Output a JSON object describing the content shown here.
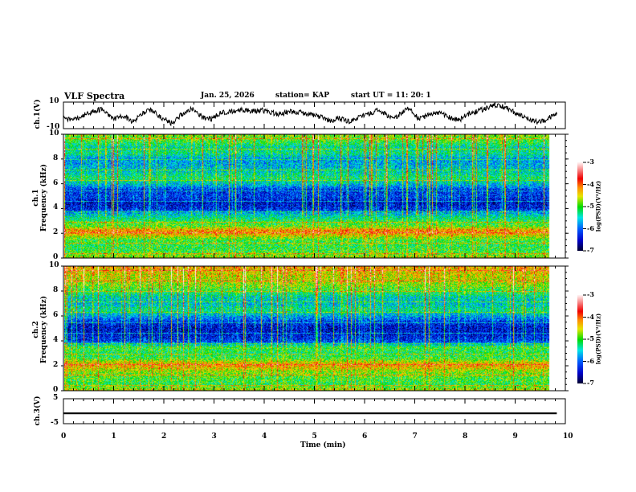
{
  "header": {
    "title": "VLF Spectra",
    "date": "Jan. 25, 2026",
    "station": "station= KAP",
    "start": "start  UT =   11: 20: 1"
  },
  "chart_data": [
    {
      "type": "line",
      "name": "ch1-waveform",
      "ylabel": "ch.1(V)",
      "ylim": [
        -10,
        10
      ],
      "yticks": [
        "10",
        "-10"
      ],
      "x_range_min": [
        0,
        9.83
      ],
      "values": [
        -2,
        -4,
        0,
        3,
        5,
        -3,
        0,
        -5,
        2,
        4,
        -2,
        -6,
        1,
        5,
        -1,
        -3,
        2,
        3,
        4,
        3,
        4,
        2,
        1,
        3,
        2,
        1,
        -1,
        -4,
        -2,
        -5,
        -1,
        1,
        5,
        -2,
        0,
        6,
        -3,
        0,
        2,
        -1,
        -4,
        1,
        3,
        6,
        8,
        5,
        1,
        -2,
        -5,
        -3,
        2
      ]
    },
    {
      "type": "heatmap",
      "name": "ch1-spectrogram",
      "ylabel": "ch.1\nFrequency (kHz)",
      "ylim": [
        0,
        10
      ],
      "yticks": [
        "0",
        "2",
        "4",
        "6",
        "8",
        "10"
      ],
      "colorbar": {
        "range": [
          -7,
          -3
        ],
        "ticks": [
          "-3",
          "-4",
          "-5",
          "-6",
          "-7"
        ],
        "label": "log(PSD)(V²/Hz)"
      },
      "profile_khz": [
        0,
        0.5,
        1,
        1.5,
        2,
        2.3,
        2.6,
        3,
        3.5,
        4,
        4.5,
        5,
        5.5,
        6,
        6.5,
        7,
        7.5,
        8,
        8.5,
        9,
        9.5,
        10
      ],
      "profile_logpsd": [
        -4.6,
        -5.0,
        -5.1,
        -5.0,
        -4.3,
        -4.2,
        -4.9,
        -5.1,
        -5.5,
        -6.3,
        -6.5,
        -6.2,
        -6.3,
        -5.6,
        -5.2,
        -5.5,
        -5.7,
        -5.8,
        -5.3,
        -5.4,
        -5.0,
        -4.8
      ]
    },
    {
      "type": "heatmap",
      "name": "ch2-spectrogram",
      "ylabel": "ch.2\nFrequency (kHz)",
      "ylim": [
        0,
        10
      ],
      "yticks": [
        "0",
        "2",
        "4",
        "6",
        "8",
        "10"
      ],
      "colorbar": {
        "range": [
          -7,
          -3
        ],
        "ticks": [
          "-3",
          "-4",
          "-5",
          "-6",
          "-7"
        ],
        "label": "log(PSD)(V²/Hz)"
      },
      "profile_khz": [
        0,
        0.5,
        1,
        1.5,
        2,
        2.3,
        2.6,
        3,
        3.5,
        4,
        4.5,
        5,
        5.5,
        6,
        6.5,
        7,
        7.5,
        8,
        8.5,
        9,
        9.5,
        10
      ],
      "profile_logpsd": [
        -4.5,
        -5.1,
        -5.0,
        -4.8,
        -4.3,
        -4.5,
        -5.0,
        -5.2,
        -5.0,
        -6.2,
        -6.4,
        -6.5,
        -6.3,
        -5.8,
        -5.3,
        -5.6,
        -5.5,
        -5.1,
        -4.8,
        -4.6,
        -4.5,
        -4.3
      ]
    },
    {
      "type": "line",
      "name": "ch3-waveform",
      "ylabel": "ch.3(V)",
      "ylim": [
        -5,
        5
      ],
      "yticks": [
        "5",
        "-5"
      ],
      "x_range_min": [
        0,
        9.83
      ],
      "level_band": [
        -1.2,
        -0.5
      ]
    }
  ],
  "xaxis": {
    "label": "Time  (min)",
    "ticks": [
      "0",
      "1",
      "2",
      "3",
      "4",
      "5",
      "6",
      "7",
      "8",
      "9",
      "10"
    ],
    "range": [
      0,
      10
    ]
  }
}
